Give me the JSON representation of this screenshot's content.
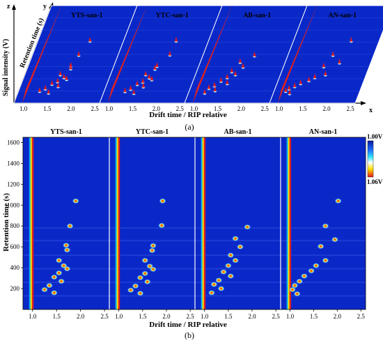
{
  "figure": {
    "panel_a_label": "(a)",
    "panel_b_label": "(b)"
  },
  "panel_a": {
    "axis_z_letter": "z",
    "axis_y_letter": "y",
    "axis_x_letter": "x",
    "z_label": "Signal intensity (V)",
    "y_label": "Retention time (s)",
    "x_label": "Drift time / RIP relative",
    "samples": [
      "YTS-san-1",
      "YTC-san-1",
      "AB-san-1",
      "AN-san-1"
    ],
    "x_ticks": [
      "1.0",
      "1.5",
      "2.0",
      "2.5"
    ]
  },
  "chart_data": {
    "type": "heatmap",
    "xlabel": "Drift time / RIP relative",
    "ylabel": "Retention time (s)",
    "panels": [
      "YTS-san-1",
      "YTC-san-1",
      "AB-san-1",
      "AN-san-1"
    ],
    "x_ticks": [
      1.0,
      1.5,
      2.0,
      2.5
    ],
    "y_ticks": [
      200,
      400,
      600,
      800,
      1000,
      1200,
      1400,
      1600
    ],
    "xlim": [
      0.8,
      2.6
    ],
    "ylim": [
      0,
      1650
    ],
    "colorbar": {
      "max_label": "1.00V",
      "min_label": "1.06V"
    },
    "colors": {
      "background": "#0a28c8",
      "rip_line": "#e02020",
      "peak_high": "#e31a1c",
      "peak_mid": "#ffe100",
      "peak_low": "#00d8ff"
    },
    "peaks": {
      "YTS-san-1": [
        [
          1.78,
          800
        ],
        [
          1.7,
          615
        ],
        [
          1.72,
          570
        ],
        [
          1.55,
          470
        ],
        [
          1.65,
          420
        ],
        [
          1.72,
          390
        ],
        [
          1.55,
          350
        ],
        [
          1.45,
          310
        ],
        [
          1.6,
          270
        ],
        [
          1.35,
          230
        ],
        [
          1.25,
          190
        ],
        [
          1.45,
          160
        ],
        [
          1.9,
          1040
        ]
      ],
      "YTC-san-1": [
        [
          1.9,
          805
        ],
        [
          1.72,
          612
        ],
        [
          1.7,
          565
        ],
        [
          1.55,
          470
        ],
        [
          1.65,
          415
        ],
        [
          1.72,
          385
        ],
        [
          1.55,
          345
        ],
        [
          1.45,
          305
        ],
        [
          1.6,
          265
        ],
        [
          1.35,
          225
        ],
        [
          1.25,
          185
        ],
        [
          1.45,
          155
        ],
        [
          1.92,
          1040
        ]
      ],
      "AB-san-1": [
        [
          1.9,
          790
        ],
        [
          1.65,
          680
        ],
        [
          1.75,
          600
        ],
        [
          1.55,
          520
        ],
        [
          1.65,
          470
        ],
        [
          1.5,
          420
        ],
        [
          1.4,
          360
        ],
        [
          1.55,
          320
        ],
        [
          1.3,
          280
        ],
        [
          1.2,
          240
        ],
        [
          1.35,
          200
        ],
        [
          1.15,
          160
        ]
      ],
      "AN-san-1": [
        [
          2.02,
          1040
        ],
        [
          1.75,
          800
        ],
        [
          1.65,
          605
        ],
        [
          1.75,
          470
        ],
        [
          1.55,
          420
        ],
        [
          1.45,
          370
        ],
        [
          1.3,
          320
        ],
        [
          1.2,
          270
        ],
        [
          1.1,
          230
        ],
        [
          1.05,
          190
        ],
        [
          1.15,
          150
        ],
        [
          1.95,
          670
        ]
      ]
    }
  }
}
